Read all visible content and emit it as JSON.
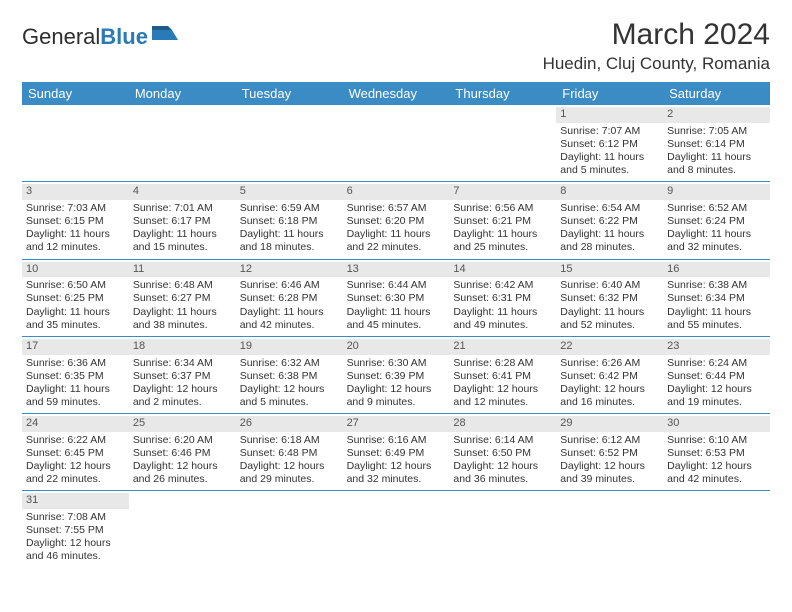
{
  "logo": {
    "part1": "General",
    "part2": "Blue"
  },
  "title": "March 2024",
  "location": "Huedin, Cluj County, Romania",
  "colors": {
    "header_bg": "#3b8bc4",
    "header_text": "#ffffff",
    "daynum_bg": "#e8e8e8",
    "text": "#333333",
    "rule": "#3b8bc4",
    "logo_blue": "#2a7ab8"
  },
  "day_names": [
    "Sunday",
    "Monday",
    "Tuesday",
    "Wednesday",
    "Thursday",
    "Friday",
    "Saturday"
  ],
  "weeks": [
    [
      null,
      null,
      null,
      null,
      null,
      {
        "n": "1",
        "sr": "Sunrise: 7:07 AM",
        "ss": "Sunset: 6:12 PM",
        "d1": "Daylight: 11 hours",
        "d2": "and 5 minutes."
      },
      {
        "n": "2",
        "sr": "Sunrise: 7:05 AM",
        "ss": "Sunset: 6:14 PM",
        "d1": "Daylight: 11 hours",
        "d2": "and 8 minutes."
      }
    ],
    [
      {
        "n": "3",
        "sr": "Sunrise: 7:03 AM",
        "ss": "Sunset: 6:15 PM",
        "d1": "Daylight: 11 hours",
        "d2": "and 12 minutes."
      },
      {
        "n": "4",
        "sr": "Sunrise: 7:01 AM",
        "ss": "Sunset: 6:17 PM",
        "d1": "Daylight: 11 hours",
        "d2": "and 15 minutes."
      },
      {
        "n": "5",
        "sr": "Sunrise: 6:59 AM",
        "ss": "Sunset: 6:18 PM",
        "d1": "Daylight: 11 hours",
        "d2": "and 18 minutes."
      },
      {
        "n": "6",
        "sr": "Sunrise: 6:57 AM",
        "ss": "Sunset: 6:20 PM",
        "d1": "Daylight: 11 hours",
        "d2": "and 22 minutes."
      },
      {
        "n": "7",
        "sr": "Sunrise: 6:56 AM",
        "ss": "Sunset: 6:21 PM",
        "d1": "Daylight: 11 hours",
        "d2": "and 25 minutes."
      },
      {
        "n": "8",
        "sr": "Sunrise: 6:54 AM",
        "ss": "Sunset: 6:22 PM",
        "d1": "Daylight: 11 hours",
        "d2": "and 28 minutes."
      },
      {
        "n": "9",
        "sr": "Sunrise: 6:52 AM",
        "ss": "Sunset: 6:24 PM",
        "d1": "Daylight: 11 hours",
        "d2": "and 32 minutes."
      }
    ],
    [
      {
        "n": "10",
        "sr": "Sunrise: 6:50 AM",
        "ss": "Sunset: 6:25 PM",
        "d1": "Daylight: 11 hours",
        "d2": "and 35 minutes."
      },
      {
        "n": "11",
        "sr": "Sunrise: 6:48 AM",
        "ss": "Sunset: 6:27 PM",
        "d1": "Daylight: 11 hours",
        "d2": "and 38 minutes."
      },
      {
        "n": "12",
        "sr": "Sunrise: 6:46 AM",
        "ss": "Sunset: 6:28 PM",
        "d1": "Daylight: 11 hours",
        "d2": "and 42 minutes."
      },
      {
        "n": "13",
        "sr": "Sunrise: 6:44 AM",
        "ss": "Sunset: 6:30 PM",
        "d1": "Daylight: 11 hours",
        "d2": "and 45 minutes."
      },
      {
        "n": "14",
        "sr": "Sunrise: 6:42 AM",
        "ss": "Sunset: 6:31 PM",
        "d1": "Daylight: 11 hours",
        "d2": "and 49 minutes."
      },
      {
        "n": "15",
        "sr": "Sunrise: 6:40 AM",
        "ss": "Sunset: 6:32 PM",
        "d1": "Daylight: 11 hours",
        "d2": "and 52 minutes."
      },
      {
        "n": "16",
        "sr": "Sunrise: 6:38 AM",
        "ss": "Sunset: 6:34 PM",
        "d1": "Daylight: 11 hours",
        "d2": "and 55 minutes."
      }
    ],
    [
      {
        "n": "17",
        "sr": "Sunrise: 6:36 AM",
        "ss": "Sunset: 6:35 PM",
        "d1": "Daylight: 11 hours",
        "d2": "and 59 minutes."
      },
      {
        "n": "18",
        "sr": "Sunrise: 6:34 AM",
        "ss": "Sunset: 6:37 PM",
        "d1": "Daylight: 12 hours",
        "d2": "and 2 minutes."
      },
      {
        "n": "19",
        "sr": "Sunrise: 6:32 AM",
        "ss": "Sunset: 6:38 PM",
        "d1": "Daylight: 12 hours",
        "d2": "and 5 minutes."
      },
      {
        "n": "20",
        "sr": "Sunrise: 6:30 AM",
        "ss": "Sunset: 6:39 PM",
        "d1": "Daylight: 12 hours",
        "d2": "and 9 minutes."
      },
      {
        "n": "21",
        "sr": "Sunrise: 6:28 AM",
        "ss": "Sunset: 6:41 PM",
        "d1": "Daylight: 12 hours",
        "d2": "and 12 minutes."
      },
      {
        "n": "22",
        "sr": "Sunrise: 6:26 AM",
        "ss": "Sunset: 6:42 PM",
        "d1": "Daylight: 12 hours",
        "d2": "and 16 minutes."
      },
      {
        "n": "23",
        "sr": "Sunrise: 6:24 AM",
        "ss": "Sunset: 6:44 PM",
        "d1": "Daylight: 12 hours",
        "d2": "and 19 minutes."
      }
    ],
    [
      {
        "n": "24",
        "sr": "Sunrise: 6:22 AM",
        "ss": "Sunset: 6:45 PM",
        "d1": "Daylight: 12 hours",
        "d2": "and 22 minutes."
      },
      {
        "n": "25",
        "sr": "Sunrise: 6:20 AM",
        "ss": "Sunset: 6:46 PM",
        "d1": "Daylight: 12 hours",
        "d2": "and 26 minutes."
      },
      {
        "n": "26",
        "sr": "Sunrise: 6:18 AM",
        "ss": "Sunset: 6:48 PM",
        "d1": "Daylight: 12 hours",
        "d2": "and 29 minutes."
      },
      {
        "n": "27",
        "sr": "Sunrise: 6:16 AM",
        "ss": "Sunset: 6:49 PM",
        "d1": "Daylight: 12 hours",
        "d2": "and 32 minutes."
      },
      {
        "n": "28",
        "sr": "Sunrise: 6:14 AM",
        "ss": "Sunset: 6:50 PM",
        "d1": "Daylight: 12 hours",
        "d2": "and 36 minutes."
      },
      {
        "n": "29",
        "sr": "Sunrise: 6:12 AM",
        "ss": "Sunset: 6:52 PM",
        "d1": "Daylight: 12 hours",
        "d2": "and 39 minutes."
      },
      {
        "n": "30",
        "sr": "Sunrise: 6:10 AM",
        "ss": "Sunset: 6:53 PM",
        "d1": "Daylight: 12 hours",
        "d2": "and 42 minutes."
      }
    ],
    [
      {
        "n": "31",
        "sr": "Sunrise: 7:08 AM",
        "ss": "Sunset: 7:55 PM",
        "d1": "Daylight: 12 hours",
        "d2": "and 46 minutes."
      },
      null,
      null,
      null,
      null,
      null,
      null
    ]
  ]
}
